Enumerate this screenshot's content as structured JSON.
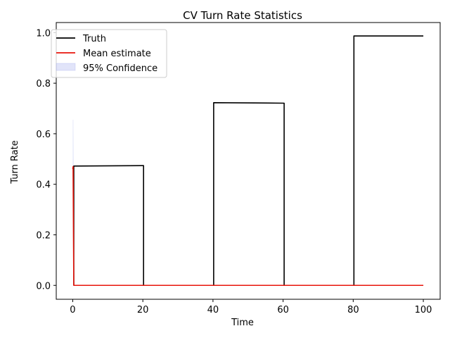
{
  "chart_data": {
    "type": "line",
    "title": "CV Turn Rate Statistics",
    "xlabel": "Time",
    "ylabel": "Turn Rate",
    "xlim": [
      -4.7,
      104.8
    ],
    "ylim": [
      -0.055,
      1.04
    ],
    "xticks": [
      0,
      20,
      40,
      60,
      80,
      100
    ],
    "yticks": [
      0.0,
      0.2,
      0.4,
      0.6,
      0.8,
      1.0
    ],
    "xtick_labels": [
      "0",
      "20",
      "40",
      "60",
      "80",
      "100"
    ],
    "ytick_labels": [
      "0.0",
      "0.2",
      "0.4",
      "0.6",
      "0.8",
      "1.0"
    ],
    "grid": false,
    "legend_position": "top-left",
    "legend": [
      "Truth",
      "Mean estimate",
      "95% Confidence"
    ],
    "colors": {
      "truth": "#000000",
      "mean": "#e8150b",
      "confidence": "#9aa4ea"
    },
    "series": [
      {
        "name": "Truth",
        "x": [
          0.3,
          0.3,
          20.0,
          20.2,
          20.2,
          40.0,
          40.2,
          40.2,
          60.0,
          60.3,
          60.3,
          80.0,
          80.2,
          80.2,
          100.0
        ],
        "y": [
          0.0,
          0.472,
          0.474,
          0.474,
          0.0,
          0.0,
          0.0,
          0.723,
          0.721,
          0.721,
          0.0,
          0.0,
          0.0,
          0.987,
          0.987
        ]
      },
      {
        "name": "Mean estimate",
        "x": [
          0.0,
          0.1,
          0.3,
          100.0
        ],
        "y": [
          0.46,
          0.47,
          0.0,
          0.0
        ]
      },
      {
        "name": "95% Confidence",
        "x": [
          0.1,
          0.1,
          0.3,
          100.0
        ],
        "lower": [
          0.27,
          0.27,
          0.0,
          0.0
        ],
        "upper": [
          0.655,
          0.655,
          0.0,
          0.0
        ]
      }
    ]
  }
}
